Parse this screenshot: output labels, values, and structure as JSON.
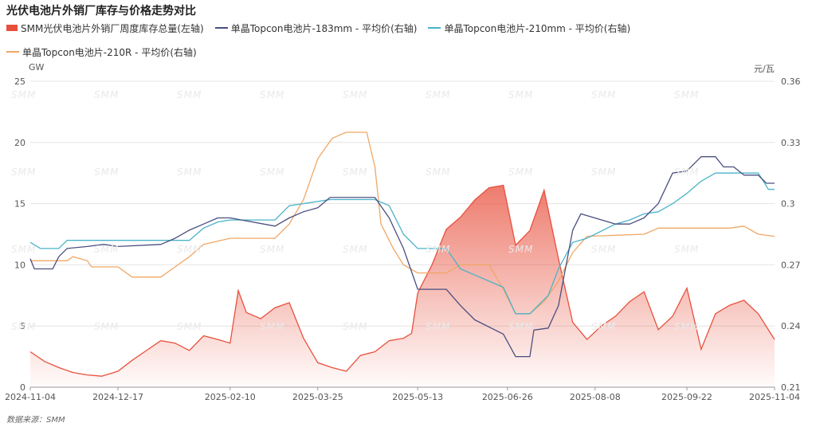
{
  "source": "数据来源：SMM",
  "watermark": "SMM",
  "colors": {
    "inventory": "#e8503d",
    "s183": "#4a4f80",
    "s210mm": "#4ab3c8",
    "s210r": "#f0a765",
    "grid": "#e4e4e4",
    "axis": "#999999"
  },
  "chart_data": {
    "type": "line",
    "title": "光伏电池片外销厂库存与价格走势对比",
    "legend_position": "top-left",
    "x_tick_labels": [
      "2024-11-04",
      "2024-12-17",
      "2025-02-10",
      "2025-03-25",
      "2025-05-13",
      "2025-06-26",
      "2025-08-08",
      "2025-09-22",
      "2025-11-04"
    ],
    "x_tick_dates": [
      "2024-11-04",
      "2024-12-17",
      "2025-02-10",
      "2025-03-25",
      "2025-05-13",
      "2025-06-26",
      "2025-08-08",
      "2025-09-22",
      "2025-11-04"
    ],
    "x_range": [
      "2024-11-04",
      "2025-11-04"
    ],
    "y_left": {
      "unit": "GW",
      "range": [
        0,
        25
      ],
      "ticks": [
        0,
        5,
        10,
        15,
        20,
        25
      ]
    },
    "y_right": {
      "unit": "元/瓦",
      "range": [
        0.21,
        0.36
      ],
      "ticks": [
        0.21,
        0.24,
        0.27,
        0.3,
        0.33,
        0.36
      ]
    },
    "grid": true,
    "series": [
      {
        "name": "SMM光伏电池片外销厂周度库存总量(左轴)",
        "kind": "area",
        "axis": "left",
        "points": [
          [
            "2024-11-04",
            2.9
          ],
          [
            "2024-11-11",
            2.1
          ],
          [
            "2024-11-18",
            1.6
          ],
          [
            "2024-11-25",
            1.2
          ],
          [
            "2024-12-02",
            1.0
          ],
          [
            "2024-12-09",
            0.9
          ],
          [
            "2024-12-17",
            1.3
          ],
          [
            "2024-12-24",
            2.2
          ],
          [
            "2024-12-31",
            3.0
          ],
          [
            "2025-01-07",
            3.8
          ],
          [
            "2025-01-14",
            3.6
          ],
          [
            "2025-01-21",
            3.0
          ],
          [
            "2025-01-28",
            4.2
          ],
          [
            "2025-02-04",
            3.9
          ],
          [
            "2025-02-10",
            3.6
          ],
          [
            "2025-02-14",
            7.9
          ],
          [
            "2025-02-18",
            6.1
          ],
          [
            "2025-02-25",
            5.6
          ],
          [
            "2025-03-04",
            6.5
          ],
          [
            "2025-03-11",
            6.9
          ],
          [
            "2025-03-18",
            4.0
          ],
          [
            "2025-03-25",
            2.0
          ],
          [
            "2025-04-01",
            1.6
          ],
          [
            "2025-04-08",
            1.3
          ],
          [
            "2025-04-15",
            2.6
          ],
          [
            "2025-04-22",
            2.9
          ],
          [
            "2025-04-29",
            3.8
          ],
          [
            "2025-05-06",
            4.0
          ],
          [
            "2025-05-10",
            4.4
          ],
          [
            "2025-05-13",
            7.7
          ],
          [
            "2025-05-20",
            10.0
          ],
          [
            "2025-05-27",
            12.9
          ],
          [
            "2025-06-03",
            13.9
          ],
          [
            "2025-06-10",
            15.3
          ],
          [
            "2025-06-17",
            16.3
          ],
          [
            "2025-06-24",
            16.5
          ],
          [
            "2025-06-30",
            11.6
          ],
          [
            "2025-07-07",
            12.8
          ],
          [
            "2025-07-14",
            16.1
          ],
          [
            "2025-07-21",
            10.5
          ],
          [
            "2025-07-28",
            5.3
          ],
          [
            "2025-08-04",
            3.9
          ],
          [
            "2025-08-11",
            5.0
          ],
          [
            "2025-08-18",
            5.8
          ],
          [
            "2025-08-25",
            7.0
          ],
          [
            "2025-09-01",
            7.8
          ],
          [
            "2025-09-08",
            4.7
          ],
          [
            "2025-09-15",
            5.8
          ],
          [
            "2025-09-22",
            8.1
          ],
          [
            "2025-09-29",
            3.1
          ],
          [
            "2025-10-06",
            6.0
          ],
          [
            "2025-10-13",
            6.7
          ],
          [
            "2025-10-20",
            7.1
          ],
          [
            "2025-10-27",
            6.0
          ],
          [
            "2025-11-04",
            3.9
          ]
        ]
      },
      {
        "name": "单晶Topcon电池片-183mm - 平均价(右轴)",
        "kind": "line",
        "axis": "right",
        "points": [
          [
            "2024-11-04",
            0.273
          ],
          [
            "2024-11-06",
            0.268
          ],
          [
            "2024-11-15",
            0.268
          ],
          [
            "2024-11-18",
            0.274
          ],
          [
            "2024-11-22",
            0.278
          ],
          [
            "2024-12-02",
            0.279
          ],
          [
            "2024-12-10",
            0.28
          ],
          [
            "2024-12-17",
            0.279
          ],
          [
            "2025-01-07",
            0.28
          ],
          [
            "2025-01-14",
            0.283
          ],
          [
            "2025-01-21",
            0.287
          ],
          [
            "2025-01-28",
            0.29
          ],
          [
            "2025-02-04",
            0.293
          ],
          [
            "2025-02-10",
            0.293
          ],
          [
            "2025-03-04",
            0.289
          ],
          [
            "2025-03-11",
            0.293
          ],
          [
            "2025-03-18",
            0.296
          ],
          [
            "2025-03-25",
            0.298
          ],
          [
            "2025-03-31",
            0.303
          ],
          [
            "2025-04-22",
            0.303
          ],
          [
            "2025-04-29",
            0.293
          ],
          [
            "2025-05-06",
            0.278
          ],
          [
            "2025-05-13",
            0.258
          ],
          [
            "2025-05-27",
            0.258
          ],
          [
            "2025-06-03",
            0.25
          ],
          [
            "2025-06-10",
            0.243
          ],
          [
            "2025-06-24",
            0.236
          ],
          [
            "2025-06-30",
            0.225
          ],
          [
            "2025-07-07",
            0.225
          ],
          [
            "2025-07-09",
            0.238
          ],
          [
            "2025-07-16",
            0.239
          ],
          [
            "2025-07-21",
            0.25
          ],
          [
            "2025-07-28",
            0.287
          ],
          [
            "2025-08-01",
            0.295
          ],
          [
            "2025-08-18",
            0.29
          ],
          [
            "2025-08-25",
            0.29
          ],
          [
            "2025-09-01",
            0.293
          ],
          [
            "2025-09-08",
            0.3
          ],
          [
            "2025-09-15",
            0.315
          ],
          [
            "2025-09-22",
            0.316
          ],
          [
            "2025-09-29",
            0.323
          ],
          [
            "2025-10-06",
            0.323
          ],
          [
            "2025-10-10",
            0.318
          ],
          [
            "2025-10-15",
            0.318
          ],
          [
            "2025-10-20",
            0.314
          ],
          [
            "2025-10-27",
            0.314
          ],
          [
            "2025-10-31",
            0.31
          ],
          [
            "2025-11-04",
            0.31
          ]
        ]
      },
      {
        "name": "单晶Topcon电池片-210mm - 平均价(右轴)",
        "kind": "line",
        "axis": "right",
        "points": [
          [
            "2024-11-04",
            0.281
          ],
          [
            "2024-11-09",
            0.278
          ],
          [
            "2024-11-18",
            0.278
          ],
          [
            "2024-11-22",
            0.282
          ],
          [
            "2025-01-21",
            0.282
          ],
          [
            "2025-01-28",
            0.288
          ],
          [
            "2025-02-04",
            0.291
          ],
          [
            "2025-02-10",
            0.292
          ],
          [
            "2025-03-04",
            0.292
          ],
          [
            "2025-03-11",
            0.299
          ],
          [
            "2025-03-18",
            0.3
          ],
          [
            "2025-03-31",
            0.302
          ],
          [
            "2025-04-22",
            0.302
          ],
          [
            "2025-04-29",
            0.299
          ],
          [
            "2025-05-06",
            0.285
          ],
          [
            "2025-05-13",
            0.278
          ],
          [
            "2025-05-27",
            0.278
          ],
          [
            "2025-06-03",
            0.268
          ],
          [
            "2025-06-10",
            0.265
          ],
          [
            "2025-06-24",
            0.259
          ],
          [
            "2025-06-30",
            0.246
          ],
          [
            "2025-07-07",
            0.246
          ],
          [
            "2025-07-16",
            0.255
          ],
          [
            "2025-07-21",
            0.268
          ],
          [
            "2025-07-28",
            0.281
          ],
          [
            "2025-08-04",
            0.283
          ],
          [
            "2025-08-18",
            0.29
          ],
          [
            "2025-08-25",
            0.292
          ],
          [
            "2025-09-01",
            0.295
          ],
          [
            "2025-09-08",
            0.296
          ],
          [
            "2025-09-15",
            0.3
          ],
          [
            "2025-09-22",
            0.305
          ],
          [
            "2025-09-29",
            0.311
          ],
          [
            "2025-10-06",
            0.315
          ],
          [
            "2025-10-20",
            0.315
          ],
          [
            "2025-10-27",
            0.315
          ],
          [
            "2025-11-01",
            0.307
          ],
          [
            "2025-11-04",
            0.307
          ]
        ]
      },
      {
        "name": "单晶Topcon电池片-210R - 平均价(右轴)",
        "kind": "line",
        "axis": "right",
        "points": [
          [
            "2024-11-04",
            0.272
          ],
          [
            "2024-11-22",
            0.272
          ],
          [
            "2024-11-25",
            0.274
          ],
          [
            "2024-12-02",
            0.272
          ],
          [
            "2024-12-04",
            0.269
          ],
          [
            "2024-12-17",
            0.269
          ],
          [
            "2024-12-24",
            0.264
          ],
          [
            "2025-01-07",
            0.264
          ],
          [
            "2025-01-14",
            0.269
          ],
          [
            "2025-01-21",
            0.274
          ],
          [
            "2025-01-28",
            0.28
          ],
          [
            "2025-02-10",
            0.283
          ],
          [
            "2025-03-04",
            0.283
          ],
          [
            "2025-03-11",
            0.29
          ],
          [
            "2025-03-18",
            0.302
          ],
          [
            "2025-03-25",
            0.322
          ],
          [
            "2025-04-01",
            0.332
          ],
          [
            "2025-04-08",
            0.335
          ],
          [
            "2025-04-18",
            0.335
          ],
          [
            "2025-04-22",
            0.318
          ],
          [
            "2025-04-25",
            0.29
          ],
          [
            "2025-05-01",
            0.278
          ],
          [
            "2025-05-06",
            0.27
          ],
          [
            "2025-05-13",
            0.266
          ],
          [
            "2025-05-27",
            0.266
          ],
          [
            "2025-06-03",
            0.27
          ],
          [
            "2025-06-17",
            0.27
          ],
          [
            "2025-06-24",
            0.258
          ],
          [
            "2025-06-30",
            0.246
          ],
          [
            "2025-07-07",
            0.246
          ],
          [
            "2025-07-14",
            0.252
          ],
          [
            "2025-07-21",
            0.262
          ],
          [
            "2025-07-28",
            0.276
          ],
          [
            "2025-08-04",
            0.284
          ],
          [
            "2025-09-01",
            0.285
          ],
          [
            "2025-09-08",
            0.288
          ],
          [
            "2025-10-13",
            0.288
          ],
          [
            "2025-10-20",
            0.289
          ],
          [
            "2025-10-27",
            0.285
          ],
          [
            "2025-11-04",
            0.284
          ]
        ]
      }
    ]
  }
}
